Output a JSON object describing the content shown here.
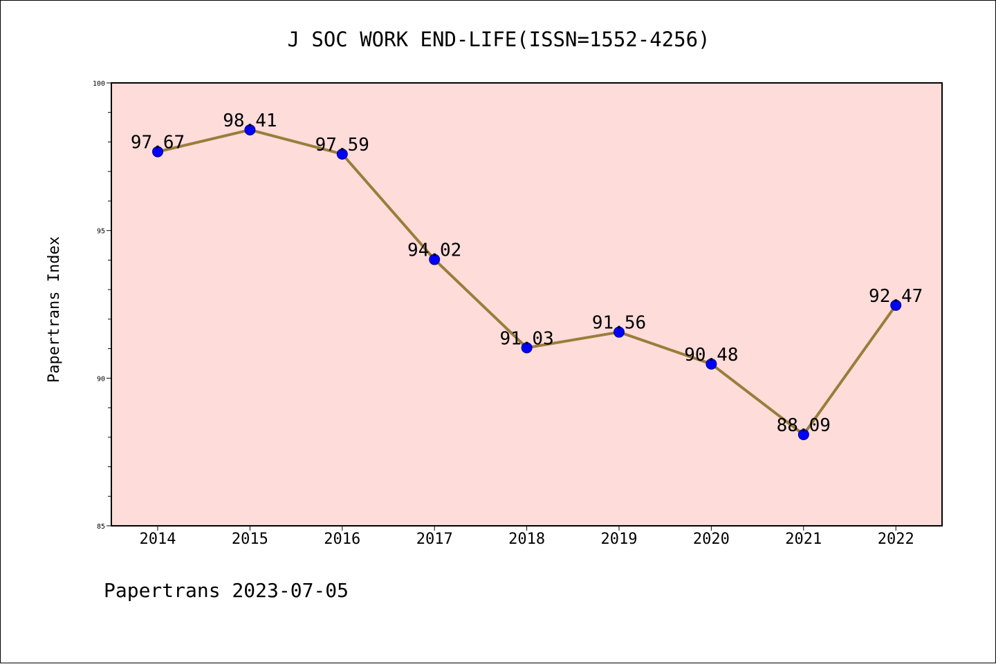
{
  "chart_data": {
    "type": "line",
    "title": "J SOC WORK END-LIFE(ISSN=1552-4256)",
    "xlabel": "",
    "ylabel": "Papertrans Index",
    "categories": [
      "2014",
      "2015",
      "2016",
      "2017",
      "2018",
      "2019",
      "2020",
      "2021",
      "2022"
    ],
    "values": [
      97.67,
      98.41,
      97.59,
      94.02,
      91.03,
      91.56,
      90.48,
      88.09,
      92.47
    ],
    "data_labels": [
      "97.67",
      "98.41",
      "97.59",
      "94.02",
      "91.03",
      "91.56",
      "90.48",
      "88.09",
      "92.47"
    ],
    "ylim": [
      85,
      100
    ],
    "yticks": [
      "85",
      "90",
      "95",
      "100"
    ],
    "grid": false,
    "legend": "none",
    "colors": {
      "plot_background": "#fddcda",
      "line": "#9a7d3a",
      "marker": "#0000ff"
    }
  },
  "footer": "Papertrans 2023-07-05"
}
